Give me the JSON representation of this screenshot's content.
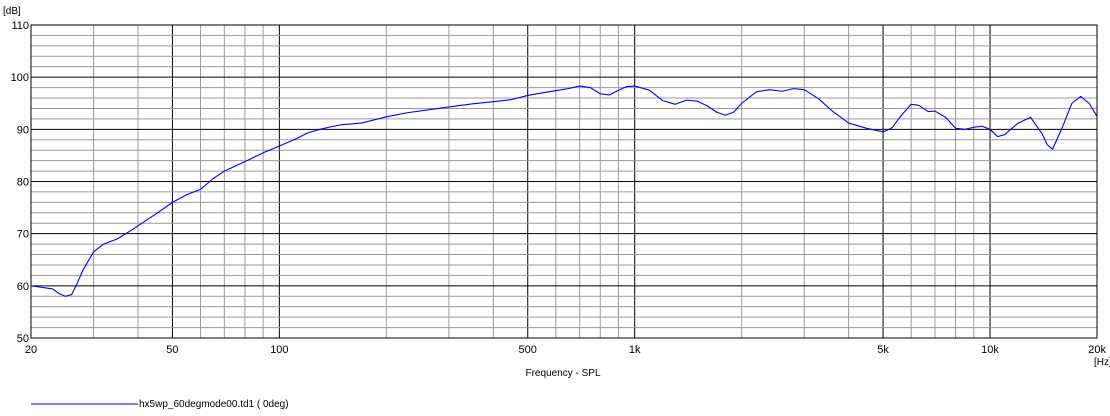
{
  "chart_data": {
    "type": "line",
    "title": "",
    "xlabel": "Frequency - SPL",
    "ylabel": "",
    "y_unit": "[dB]",
    "x_unit": "[Hz]",
    "x_scale": "log",
    "xlim": [
      20,
      20000
    ],
    "ylim": [
      50,
      110
    ],
    "grid": true,
    "legend_position": "bottom-left",
    "x_ticks": [
      {
        "value": 20,
        "label": "20"
      },
      {
        "value": 50,
        "label": "50"
      },
      {
        "value": 100,
        "label": "100"
      },
      {
        "value": 500,
        "label": "500"
      },
      {
        "value": 1000,
        "label": "1k"
      },
      {
        "value": 5000,
        "label": "5k"
      },
      {
        "value": 10000,
        "label": "10k"
      },
      {
        "value": 20000,
        "label": "20k"
      }
    ],
    "y_ticks": [
      {
        "value": 50,
        "label": "50"
      },
      {
        "value": 60,
        "label": "60"
      },
      {
        "value": 70,
        "label": "70"
      },
      {
        "value": 80,
        "label": "80"
      },
      {
        "value": 90,
        "label": "90"
      },
      {
        "value": 100,
        "label": "100"
      },
      {
        "value": 110,
        "label": "110"
      }
    ],
    "series": [
      {
        "name": "hx5wp_60degmode00.td1 ( 0deg)",
        "color": "#0000ff",
        "x": [
          20,
          21,
          22,
          23,
          24,
          25,
          26,
          27,
          28,
          30,
          32,
          35,
          38,
          40,
          45,
          50,
          55,
          60,
          65,
          70,
          80,
          90,
          100,
          110,
          120,
          130,
          140,
          150,
          170,
          200,
          230,
          260,
          300,
          350,
          400,
          450,
          500,
          550,
          600,
          650,
          700,
          750,
          800,
          850,
          900,
          950,
          1000,
          1100,
          1200,
          1300,
          1400,
          1500,
          1600,
          1700,
          1800,
          1900,
          2000,
          2200,
          2400,
          2600,
          2800,
          3000,
          3300,
          3600,
          4000,
          4500,
          5000,
          5300,
          5600,
          6000,
          6300,
          6700,
          7000,
          7500,
          8000,
          8500,
          9000,
          9500,
          10000,
          10500,
          11000,
          12000,
          13000,
          14000,
          14500,
          15000,
          16000,
          17000,
          18000,
          19000,
          20000
        ],
        "y": [
          60,
          59.8,
          59.6,
          59.4,
          58.5,
          58.0,
          58.3,
          60.5,
          63.0,
          66.5,
          68.0,
          69.0,
          70.5,
          71.5,
          73.8,
          76.0,
          77.5,
          78.5,
          80.5,
          82.0,
          83.8,
          85.5,
          86.8,
          88.0,
          89.3,
          90.0,
          90.5,
          90.9,
          91.2,
          92.4,
          93.2,
          93.7,
          94.3,
          94.9,
          95.3,
          95.7,
          96.5,
          97.0,
          97.4,
          97.8,
          98.3,
          98.0,
          96.8,
          96.6,
          97.5,
          98.2,
          98.3,
          97.5,
          95.5,
          94.8,
          95.6,
          95.4,
          94.5,
          93.3,
          92.7,
          93.3,
          95.0,
          97.2,
          97.6,
          97.3,
          97.8,
          97.6,
          95.8,
          93.5,
          91.2,
          90.2,
          89.5,
          90.3,
          92.5,
          94.8,
          94.6,
          93.4,
          93.5,
          92.3,
          90.2,
          90.0,
          90.4,
          90.6,
          90.0,
          88.6,
          89.0,
          91.2,
          92.3,
          89.2,
          87.0,
          86.2,
          90.5,
          95.0,
          96.3,
          95.0,
          92.5
        ]
      }
    ]
  }
}
